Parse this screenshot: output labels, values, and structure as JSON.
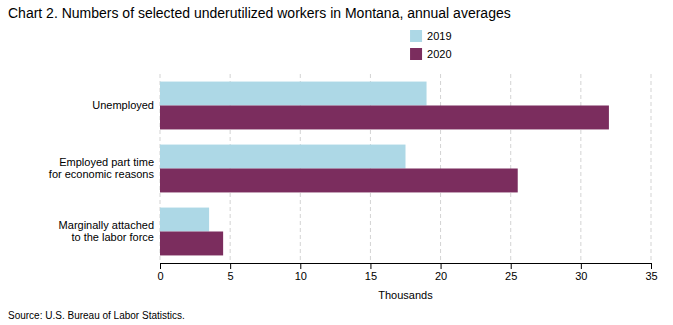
{
  "chart_data": {
    "type": "bar",
    "orientation": "horizontal",
    "title": "Chart 2. Numbers of selected underutilized workers in Montana, annual averages",
    "categories": [
      "Marginally attached\nto the labor force",
      "Employed part time\nfor economic reasons",
      "Unemployed"
    ],
    "series": [
      {
        "name": "2019",
        "color": "#add8e6",
        "values": [
          3.5,
          17.5,
          19.0
        ]
      },
      {
        "name": "2020",
        "color": "#7B2D5E",
        "values": [
          4.5,
          25.5,
          32.0
        ]
      }
    ],
    "xlabel": "Thousands",
    "xlim": [
      0,
      35
    ],
    "xticks": [
      0,
      5,
      10,
      15,
      20,
      25,
      30,
      35
    ],
    "grid": true,
    "legend": "top",
    "annotations": [
      "Source: U.S. Bureau of Labor Statistics."
    ]
  }
}
